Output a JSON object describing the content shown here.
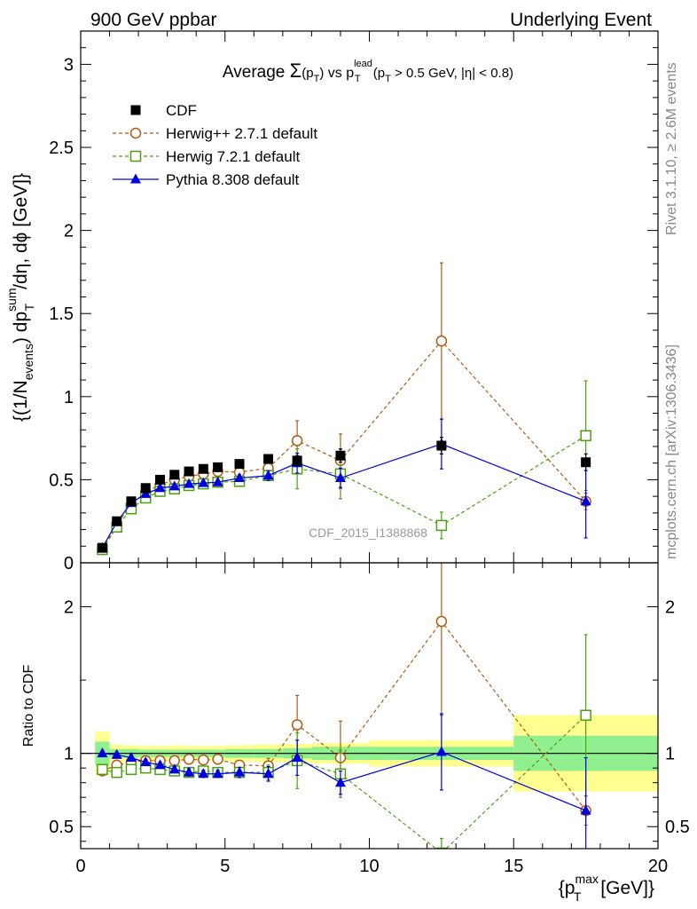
{
  "header": {
    "left": "900 GeV ppbar",
    "right": "Underlying Event"
  },
  "side_labels": {
    "rivet": "Rivet 3.1.10, ≥ 2.6M events",
    "mcplots": "mcplots.cern.ch [arXiv:1306.3436]"
  },
  "watermark": "CDF_2015_I1388868",
  "chart_data": [
    {
      "type": "scatter",
      "panel": "main",
      "title_parts": {
        "lead": "Average ",
        "sigma": "Σ",
        "sigma_arg": "(p",
        "sigma_sub": "T",
        "sigma_close": ")",
        "vs": " vs p",
        "vs_sup": "lead",
        "vs_sub": "T",
        "cut_open": " (p",
        "cut_sub": "T",
        "cut_rest": " > 0.5 GeV, |η| < 0.8)"
      },
      "ylabel_parts": {
        "open": "{(1/N",
        "n_sub": "events",
        "mid": ") dp",
        "p_sup": "sum",
        "p_sub": "T",
        "rest": "/dη, dϕ [GeV]}"
      },
      "xlim": [
        0,
        20
      ],
      "ylim": [
        0,
        3.2
      ],
      "y_ticks": [
        0,
        0.5,
        1,
        1.5,
        2,
        2.5,
        3
      ],
      "y_tick_labels": [
        "0",
        "0.5",
        "1",
        "1.5",
        "2",
        "2.5",
        "3"
      ],
      "legend_position": "top-left",
      "series": [
        {
          "name": "CDF",
          "color": "#000000",
          "marker": "square-filled",
          "line": "none",
          "x": [
            0.75,
            1.25,
            1.75,
            2.25,
            2.75,
            3.25,
            3.75,
            4.25,
            4.75,
            5.5,
            6.5,
            7.5,
            9.0,
            12.5,
            17.5
          ],
          "y": [
            0.09,
            0.25,
            0.37,
            0.45,
            0.5,
            0.53,
            0.55,
            0.565,
            0.575,
            0.595,
            0.625,
            0.615,
            0.645,
            0.705,
            0.605
          ],
          "yerr": [
            0.01,
            0.01,
            0.01,
            0.01,
            0.01,
            0.01,
            0.01,
            0.01,
            0.01,
            0.015,
            0.02,
            0.03,
            0.04,
            0.05,
            0.05
          ]
        },
        {
          "name": "Herwig++ 2.7.1 default",
          "color": "#b05a10",
          "marker": "circle-open",
          "line": "dashed",
          "x": [
            0.75,
            1.25,
            1.75,
            2.25,
            2.75,
            3.25,
            3.75,
            4.25,
            4.75,
            5.5,
            6.5,
            7.5,
            9.0,
            12.5,
            17.5
          ],
          "y": [
            0.08,
            0.23,
            0.35,
            0.425,
            0.47,
            0.5,
            0.52,
            0.535,
            0.55,
            0.545,
            0.57,
            0.735,
            0.615,
            1.335,
            0.37
          ],
          "yerr": [
            0.01,
            0.01,
            0.01,
            0.01,
            0.01,
            0.01,
            0.01,
            0.015,
            0.015,
            0.02,
            0.03,
            0.12,
            0.16,
            0.47,
            0.05
          ]
        },
        {
          "name": "Herwig 7.2.1 default",
          "color": "#4aa010",
          "marker": "square-open",
          "line": "dashed",
          "x": [
            0.75,
            1.25,
            1.75,
            2.25,
            2.75,
            3.25,
            3.75,
            4.25,
            4.75,
            5.5,
            6.5,
            7.5,
            9.0,
            12.5,
            17.5
          ],
          "y": [
            0.08,
            0.215,
            0.325,
            0.39,
            0.43,
            0.445,
            0.465,
            0.475,
            0.485,
            0.49,
            0.525,
            0.565,
            0.535,
            0.225,
            0.765
          ],
          "yerr": [
            0.01,
            0.01,
            0.01,
            0.01,
            0.01,
            0.01,
            0.01,
            0.015,
            0.015,
            0.02,
            0.03,
            0.12,
            0.15,
            0.08,
            0.33
          ]
        },
        {
          "name": "Pythia 8.308 default",
          "color": "#0000dd",
          "marker": "triangle-filled",
          "line": "solid",
          "x": [
            0.75,
            1.25,
            1.75,
            2.25,
            2.75,
            3.25,
            3.75,
            4.25,
            4.75,
            5.5,
            6.5,
            7.5,
            9.0,
            12.5,
            17.5
          ],
          "y": [
            0.09,
            0.245,
            0.36,
            0.415,
            0.45,
            0.46,
            0.475,
            0.48,
            0.485,
            0.51,
            0.525,
            0.6,
            0.51,
            0.715,
            0.37
          ],
          "yerr": [
            0.01,
            0.01,
            0.01,
            0.01,
            0.01,
            0.01,
            0.015,
            0.015,
            0.015,
            0.02,
            0.03,
            0.06,
            0.06,
            0.15,
            0.22
          ]
        }
      ]
    },
    {
      "type": "scatter",
      "panel": "ratio",
      "ylabel": "Ratio to CDF",
      "xlabel_parts": {
        "open": "{p",
        "sup": "max",
        "sub": "T",
        "rest": " [GeV]}"
      },
      "xlim": [
        0,
        20
      ],
      "ylim": [
        0.35,
        2.3
      ],
      "x_ticks": [
        0,
        5,
        10,
        15,
        20
      ],
      "x_tick_labels": [
        "0",
        "5",
        "10",
        "15",
        "20"
      ],
      "y_ticks": [
        0.5,
        1,
        2
      ],
      "y_tick_labels": [
        "0.5",
        "1",
        "2"
      ],
      "reference_line": 1,
      "bands": {
        "inner_color": "#90f090",
        "outer_color": "#ffff90",
        "bins": [
          {
            "x0": 0.5,
            "x1": 1.0,
            "inner": [
              0.92,
              1.08
            ],
            "outer": [
              0.85,
              1.15
            ]
          },
          {
            "x0": 1.0,
            "x1": 1.5,
            "inner": [
              0.97,
              1.03
            ],
            "outer": [
              0.94,
              1.06
            ]
          },
          {
            "x0": 1.5,
            "x1": 2.0,
            "inner": [
              0.97,
              1.03
            ],
            "outer": [
              0.945,
              1.055
            ]
          },
          {
            "x0": 2.0,
            "x1": 2.5,
            "inner": [
              0.975,
              1.025
            ],
            "outer": [
              0.95,
              1.05
            ]
          },
          {
            "x0": 2.5,
            "x1": 3.0,
            "inner": [
              0.975,
              1.025
            ],
            "outer": [
              0.95,
              1.05
            ]
          },
          {
            "x0": 3.0,
            "x1": 3.5,
            "inner": [
              0.975,
              1.025
            ],
            "outer": [
              0.945,
              1.055
            ]
          },
          {
            "x0": 3.5,
            "x1": 4.0,
            "inner": [
              0.975,
              1.025
            ],
            "outer": [
              0.95,
              1.05
            ]
          },
          {
            "x0": 4.0,
            "x1": 4.5,
            "inner": [
              0.975,
              1.025
            ],
            "outer": [
              0.95,
              1.05
            ]
          },
          {
            "x0": 4.5,
            "x1": 5.0,
            "inner": [
              0.975,
              1.025
            ],
            "outer": [
              0.95,
              1.05
            ]
          },
          {
            "x0": 5.0,
            "x1": 6.0,
            "inner": [
              0.97,
              1.03
            ],
            "outer": [
              0.945,
              1.055
            ]
          },
          {
            "x0": 6.0,
            "x1": 7.0,
            "inner": [
              0.97,
              1.03
            ],
            "outer": [
              0.94,
              1.06
            ]
          },
          {
            "x0": 7.0,
            "x1": 8.0,
            "inner": [
              0.965,
              1.035
            ],
            "outer": [
              0.935,
              1.065
            ]
          },
          {
            "x0": 8.0,
            "x1": 10.0,
            "inner": [
              0.955,
              1.045
            ],
            "outer": [
              0.93,
              1.07
            ]
          },
          {
            "x0": 10.0,
            "x1": 15.0,
            "inner": [
              0.955,
              1.045
            ],
            "outer": [
              0.91,
              1.09
            ]
          },
          {
            "x0": 15.0,
            "x1": 20.0,
            "inner": [
              0.88,
              1.12
            ],
            "outer": [
              0.74,
              1.26
            ]
          }
        ]
      },
      "series": [
        {
          "name": "Herwig++ 2.7.1 default",
          "color": "#b05a10",
          "marker": "circle-open",
          "line": "dashed",
          "x": [
            0.75,
            1.25,
            1.75,
            2.25,
            2.75,
            3.25,
            3.75,
            4.25,
            4.75,
            5.5,
            6.5,
            7.5,
            9.0,
            12.5,
            17.5
          ],
          "y": [
            0.88,
            0.92,
            0.94,
            0.95,
            0.95,
            0.95,
            0.96,
            0.955,
            0.96,
            0.92,
            0.915,
            1.195,
            0.97,
            1.9,
            0.61
          ],
          "yerr": [
            0.02,
            0.02,
            0.02,
            0.02,
            0.02,
            0.02,
            0.02,
            0.025,
            0.025,
            0.03,
            0.05,
            0.2,
            0.25,
            0.64,
            0.1
          ]
        },
        {
          "name": "Herwig 7.2.1 default",
          "color": "#4aa010",
          "marker": "square-open",
          "line": "dashed",
          "x": [
            0.75,
            1.25,
            1.75,
            2.25,
            2.75,
            3.25,
            3.75,
            4.25,
            4.75,
            5.5,
            6.5,
            7.5,
            9.0,
            12.5,
            17.5
          ],
          "y": [
            0.89,
            0.87,
            0.89,
            0.9,
            0.89,
            0.88,
            0.87,
            0.88,
            0.87,
            0.87,
            0.87,
            0.95,
            0.86,
            0.32,
            1.26
          ],
          "yerr": [
            0.02,
            0.02,
            0.02,
            0.02,
            0.02,
            0.02,
            0.02,
            0.025,
            0.025,
            0.03,
            0.05,
            0.19,
            0.16,
            0.1,
            0.55
          ]
        },
        {
          "name": "Pythia 8.308 default",
          "color": "#0000dd",
          "marker": "triangle-filled",
          "line": "solid",
          "x": [
            0.75,
            1.25,
            1.75,
            2.25,
            2.75,
            3.25,
            3.75,
            4.25,
            4.75,
            5.5,
            6.5,
            7.5,
            9.0,
            12.5,
            17.5
          ],
          "y": [
            1.0,
            0.99,
            0.97,
            0.94,
            0.92,
            0.89,
            0.87,
            0.86,
            0.86,
            0.87,
            0.86,
            0.97,
            0.8,
            1.01,
            0.61
          ],
          "yerr": [
            0.02,
            0.02,
            0.02,
            0.02,
            0.02,
            0.02,
            0.025,
            0.025,
            0.025,
            0.035,
            0.05,
            0.12,
            0.08,
            0.26,
            0.36
          ]
        }
      ]
    }
  ]
}
